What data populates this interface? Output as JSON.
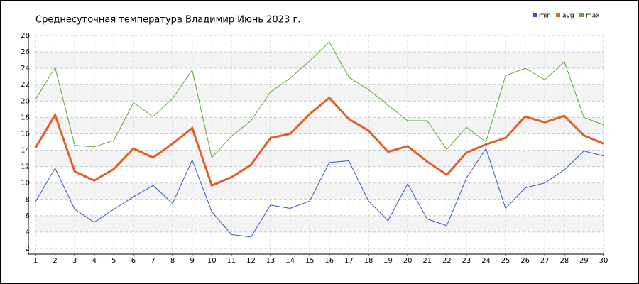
{
  "chart_data": {
    "type": "line",
    "title": "Среднесуточная температура Владимир  Июнь 2023 г.",
    "x": [
      1,
      2,
      3,
      4,
      5,
      6,
      7,
      8,
      9,
      10,
      11,
      12,
      13,
      14,
      15,
      16,
      17,
      18,
      19,
      20,
      21,
      22,
      23,
      24,
      25,
      26,
      27,
      28,
      29,
      30
    ],
    "xlim": [
      1,
      30
    ],
    "xticks": [
      1,
      2,
      3,
      4,
      5,
      6,
      7,
      8,
      9,
      10,
      11,
      12,
      13,
      14,
      15,
      16,
      17,
      18,
      19,
      20,
      21,
      22,
      23,
      24,
      25,
      26,
      27,
      28,
      29,
      30
    ],
    "ylim": [
      2,
      28
    ],
    "yticks": [
      2,
      4,
      6,
      8,
      10,
      12,
      14,
      16,
      18,
      20,
      22,
      24,
      26,
      28
    ],
    "grid": true,
    "legend": "top-right",
    "series": [
      {
        "name": "min",
        "color": "#3355dd",
        "width": 1,
        "values": [
          7.7,
          11.8,
          6.8,
          5.2,
          6.8,
          8.3,
          9.7,
          7.5,
          12.8,
          6.5,
          3.7,
          3.4,
          7.3,
          6.9,
          7.8,
          12.5,
          12.7,
          7.8,
          5.4,
          9.9,
          5.6,
          4.8,
          10.6,
          14.2,
          6.9,
          9.4,
          10.0,
          11.6,
          13.9,
          13.3
        ]
      },
      {
        "name": "avg",
        "color": "#e0602a",
        "width": 3,
        "values": [
          14.3,
          18.3,
          11.4,
          10.3,
          11.7,
          14.2,
          13.1,
          14.8,
          16.7,
          9.7,
          10.7,
          12.2,
          15.5,
          16.0,
          18.4,
          20.4,
          17.8,
          16.4,
          13.8,
          14.5,
          12.6,
          11.0,
          13.7,
          14.7,
          15.5,
          18.1,
          17.4,
          18.2,
          15.8,
          14.8
        ]
      },
      {
        "name": "max",
        "color": "#5aaa3a",
        "width": 1,
        "values": [
          20.2,
          24.1,
          14.6,
          14.4,
          15.2,
          19.8,
          18.1,
          20.3,
          23.8,
          13.1,
          15.7,
          17.6,
          21.1,
          22.8,
          24.9,
          27.2,
          22.9,
          21.4,
          19.5,
          17.6,
          17.6,
          14.1,
          16.8,
          15.0,
          23.1,
          24.0,
          22.6,
          24.8,
          18.0,
          17.1
        ]
      }
    ]
  }
}
